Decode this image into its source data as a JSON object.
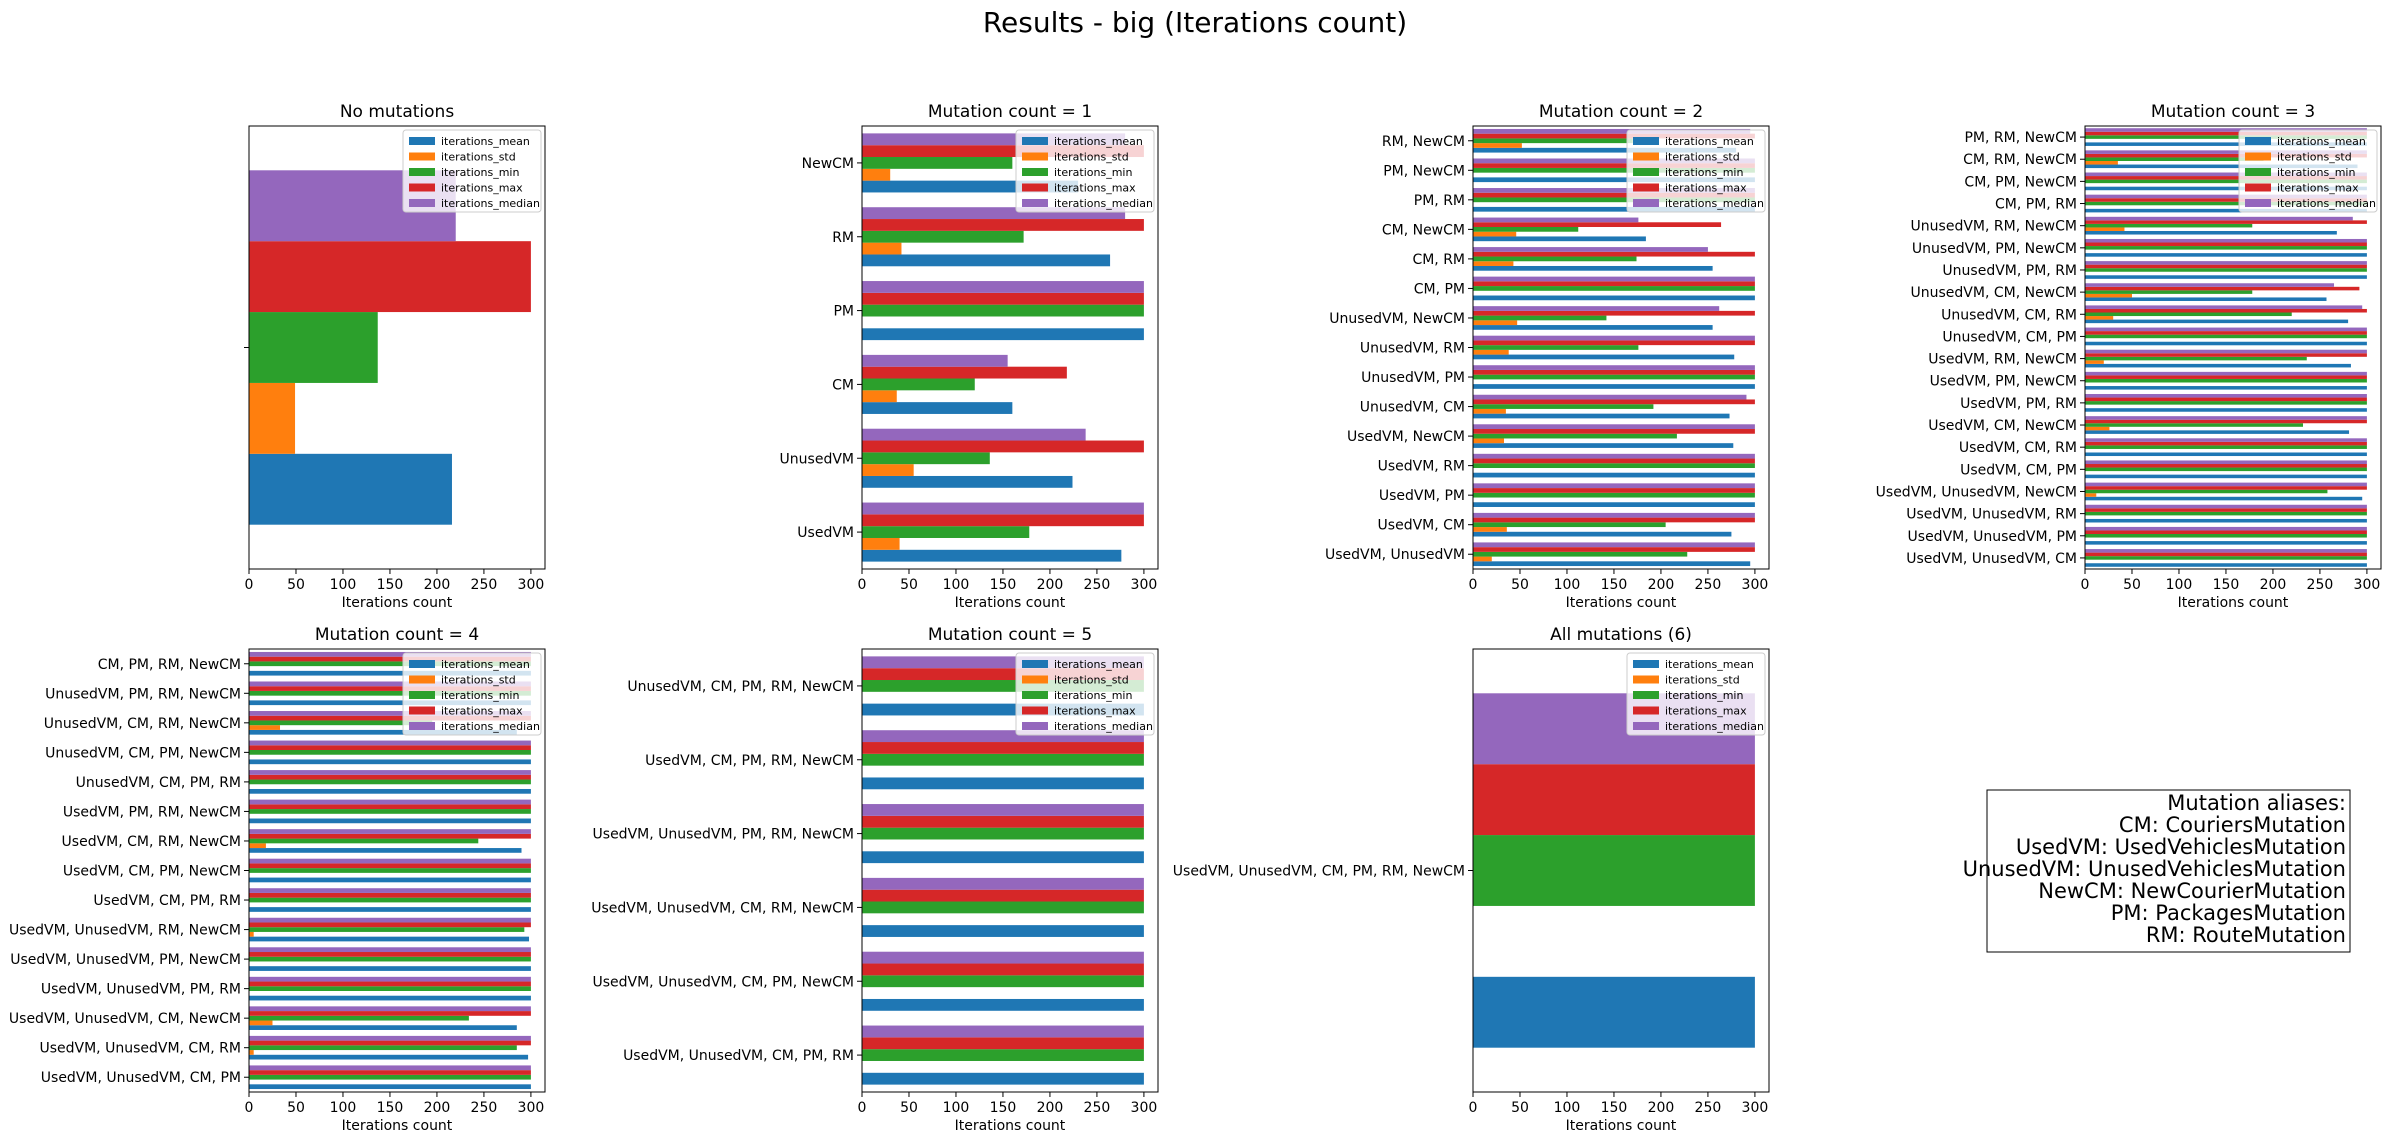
{
  "figure_title": "Results - big (Iterations count)",
  "colors": {
    "iterations_mean": "#1f77b4",
    "iterations_std": "#ff7f0e",
    "iterations_min": "#2ca02c",
    "iterations_max": "#d62728",
    "iterations_median": "#9467bd"
  },
  "chart_data": [
    {
      "type": "bar",
      "orientation": "horizontal",
      "title": "No mutations",
      "xlabel": "Iterations count",
      "xlim": [
        0,
        315
      ],
      "xticks": [
        0,
        50,
        100,
        150,
        200,
        250,
        300
      ],
      "legend": [
        "iterations_mean",
        "iterations_std",
        "iterations_min",
        "iterations_max",
        "iterations_median"
      ],
      "legend_position": "upper right",
      "categories": [
        ""
      ],
      "series": [
        {
          "name": "iterations_mean",
          "values": [
            216
          ]
        },
        {
          "name": "iterations_std",
          "values": [
            49
          ]
        },
        {
          "name": "iterations_min",
          "values": [
            137
          ]
        },
        {
          "name": "iterations_max",
          "values": [
            300
          ]
        },
        {
          "name": "iterations_median",
          "values": [
            220
          ]
        }
      ]
    },
    {
      "type": "bar",
      "orientation": "horizontal",
      "title": "Mutation count = 1",
      "xlabel": "Iterations count",
      "xlim": [
        0,
        315
      ],
      "xticks": [
        0,
        50,
        100,
        150,
        200,
        250,
        300
      ],
      "legend": [
        "iterations_mean",
        "iterations_std",
        "iterations_min",
        "iterations_max",
        "iterations_median"
      ],
      "legend_position": "upper right",
      "categories": [
        "UsedVM",
        "UnusedVM",
        "CM",
        "PM",
        "RM",
        "NewCM"
      ],
      "series": [
        {
          "name": "iterations_mean",
          "values": [
            276,
            224,
            160,
            300,
            264,
            230
          ]
        },
        {
          "name": "iterations_std",
          "values": [
            40,
            55,
            37,
            0,
            42,
            30
          ]
        },
        {
          "name": "iterations_min",
          "values": [
            178,
            136,
            120,
            300,
            172,
            160
          ]
        },
        {
          "name": "iterations_max",
          "values": [
            300,
            300,
            218,
            300,
            300,
            300
          ]
        },
        {
          "name": "iterations_median",
          "values": [
            300,
            238,
            155,
            300,
            280,
            280
          ]
        }
      ]
    },
    {
      "type": "bar",
      "orientation": "horizontal",
      "title": "Mutation count = 2",
      "xlabel": "Iterations count",
      "xlim": [
        0,
        315
      ],
      "xticks": [
        0,
        50,
        100,
        150,
        200,
        250,
        300
      ],
      "legend": [
        "iterations_mean",
        "iterations_std",
        "iterations_min",
        "iterations_max",
        "iterations_median"
      ],
      "legend_position": "upper right",
      "categories": [
        "UsedVM, UnusedVM",
        "UsedVM, CM",
        "UsedVM, PM",
        "UsedVM, RM",
        "UsedVM, NewCM",
        "UnusedVM, CM",
        "UnusedVM, PM",
        "UnusedVM, RM",
        "UnusedVM, NewCM",
        "CM, PM",
        "CM, RM",
        "CM, NewCM",
        "PM, RM",
        "PM, NewCM",
        "RM, NewCM"
      ],
      "series": [
        {
          "name": "iterations_mean",
          "values": [
            295,
            275,
            300,
            300,
            277,
            273,
            300,
            278,
            255,
            300,
            255,
            184,
            300,
            300,
            280
          ]
        },
        {
          "name": "iterations_std",
          "values": [
            20,
            36,
            0,
            0,
            33,
            35,
            0,
            38,
            47,
            0,
            43,
            46,
            0,
            0,
            52
          ]
        },
        {
          "name": "iterations_min",
          "values": [
            228,
            205,
            300,
            300,
            217,
            192,
            300,
            176,
            142,
            300,
            174,
            112,
            300,
            300,
            170
          ]
        },
        {
          "name": "iterations_max",
          "values": [
            300,
            300,
            300,
            300,
            300,
            300,
            300,
            300,
            300,
            300,
            300,
            264,
            300,
            300,
            300
          ]
        },
        {
          "name": "iterations_median",
          "values": [
            300,
            300,
            300,
            300,
            300,
            291,
            300,
            300,
            262,
            300,
            250,
            176,
            300,
            300,
            295
          ]
        }
      ]
    },
    {
      "type": "bar",
      "orientation": "horizontal",
      "title": "Mutation count = 3",
      "xlabel": "Iterations count",
      "xlim": [
        0,
        315
      ],
      "xticks": [
        0,
        50,
        100,
        150,
        200,
        250,
        300
      ],
      "legend": [
        "iterations_mean",
        "iterations_std",
        "iterations_min",
        "iterations_max",
        "iterations_median"
      ],
      "legend_position": "upper right",
      "categories": [
        "UsedVM, UnusedVM, CM",
        "UsedVM, UnusedVM, PM",
        "UsedVM, UnusedVM, RM",
        "UsedVM, UnusedVM, NewCM",
        "UsedVM, CM, PM",
        "UsedVM, CM, RM",
        "UsedVM, CM, NewCM",
        "UsedVM, PM, RM",
        "UsedVM, PM, NewCM",
        "UsedVM, RM, NewCM",
        "UnusedVM, CM, PM",
        "UnusedVM, CM, RM",
        "UnusedVM, CM, NewCM",
        "UnusedVM, PM, RM",
        "UnusedVM, PM, NewCM",
        "UnusedVM, RM, NewCM",
        "CM, PM, RM",
        "CM, PM, NewCM",
        "CM, RM, NewCM",
        "PM, RM, NewCM"
      ],
      "series": [
        {
          "name": "iterations_mean",
          "values": [
            300,
            300,
            300,
            295,
            300,
            300,
            281,
            300,
            300,
            283,
            300,
            280,
            257,
            300,
            300,
            268,
            300,
            300,
            290,
            300
          ]
        },
        {
          "name": "iterations_std",
          "values": [
            0,
            0,
            0,
            12,
            0,
            0,
            26,
            0,
            0,
            20,
            0,
            30,
            50,
            0,
            0,
            42,
            0,
            0,
            35,
            0
          ]
        },
        {
          "name": "iterations_min",
          "values": [
            300,
            300,
            300,
            258,
            300,
            300,
            232,
            300,
            300,
            236,
            300,
            220,
            178,
            300,
            300,
            178,
            300,
            300,
            190,
            300
          ]
        },
        {
          "name": "iterations_max",
          "values": [
            300,
            300,
            300,
            300,
            300,
            300,
            300,
            300,
            300,
            300,
            300,
            300,
            292,
            300,
            300,
            300,
            300,
            300,
            300,
            300
          ]
        },
        {
          "name": "iterations_median",
          "values": [
            300,
            300,
            300,
            300,
            300,
            300,
            300,
            300,
            300,
            300,
            300,
            295,
            265,
            300,
            300,
            285,
            300,
            300,
            300,
            300
          ]
        }
      ]
    },
    {
      "type": "bar",
      "orientation": "horizontal",
      "title": "Mutation count = 4",
      "xlabel": "Iterations count",
      "xlim": [
        0,
        315
      ],
      "xticks": [
        0,
        50,
        100,
        150,
        200,
        250,
        300
      ],
      "legend": [
        "iterations_mean",
        "iterations_std",
        "iterations_min",
        "iterations_max",
        "iterations_median"
      ],
      "legend_position": "upper right",
      "categories": [
        "UsedVM, UnusedVM, CM, PM",
        "UsedVM, UnusedVM, CM, RM",
        "UsedVM, UnusedVM, CM, NewCM",
        "UsedVM, UnusedVM, PM, RM",
        "UsedVM, UnusedVM, PM, NewCM",
        "UsedVM, UnusedVM, RM, NewCM",
        "UsedVM, CM, PM, RM",
        "UsedVM, CM, PM, NewCM",
        "UsedVM, CM, RM, NewCM",
        "UsedVM, PM, RM, NewCM",
        "UnusedVM, CM, PM, RM",
        "UnusedVM, CM, PM, NewCM",
        "UnusedVM, CM, RM, NewCM",
        "UnusedVM, PM, RM, NewCM",
        "CM, PM, RM, NewCM"
      ],
      "series": [
        {
          "name": "iterations_mean",
          "values": [
            300,
            297,
            285,
            300,
            300,
            298,
            300,
            300,
            290,
            300,
            300,
            300,
            285,
            300,
            300
          ]
        },
        {
          "name": "iterations_std",
          "values": [
            0,
            5,
            25,
            0,
            0,
            5,
            0,
            0,
            18,
            0,
            0,
            0,
            33,
            0,
            0
          ]
        },
        {
          "name": "iterations_min",
          "values": [
            300,
            285,
            234,
            300,
            300,
            293,
            300,
            300,
            244,
            300,
            300,
            300,
            195,
            300,
            300
          ]
        },
        {
          "name": "iterations_max",
          "values": [
            300,
            300,
            300,
            300,
            300,
            300,
            300,
            300,
            300,
            300,
            300,
            300,
            300,
            300,
            300
          ]
        },
        {
          "name": "iterations_median",
          "values": [
            300,
            300,
            300,
            300,
            300,
            300,
            300,
            300,
            300,
            300,
            300,
            300,
            300,
            300,
            300
          ]
        }
      ]
    },
    {
      "type": "bar",
      "orientation": "horizontal",
      "title": "Mutation count = 5",
      "xlabel": "Iterations count",
      "xlim": [
        0,
        315
      ],
      "xticks": [
        0,
        50,
        100,
        150,
        200,
        250,
        300
      ],
      "legend": [
        "iterations_mean",
        "iterations_std",
        "iterations_min",
        "iterations_max",
        "iterations_median"
      ],
      "legend_position": "upper right",
      "categories": [
        "UsedVM, UnusedVM, CM, PM, RM",
        "UsedVM, UnusedVM, CM, PM, NewCM",
        "UsedVM, UnusedVM, CM, RM, NewCM",
        "UsedVM, UnusedVM, PM, RM, NewCM",
        "UsedVM, CM, PM, RM, NewCM",
        "UnusedVM, CM, PM, RM, NewCM"
      ],
      "series": [
        {
          "name": "iterations_mean",
          "values": [
            300,
            300,
            300,
            300,
            300,
            300
          ]
        },
        {
          "name": "iterations_std",
          "values": [
            0,
            0,
            0,
            0,
            0,
            0
          ]
        },
        {
          "name": "iterations_min",
          "values": [
            300,
            300,
            300,
            300,
            300,
            300
          ]
        },
        {
          "name": "iterations_max",
          "values": [
            300,
            300,
            300,
            300,
            300,
            300
          ]
        },
        {
          "name": "iterations_median",
          "values": [
            300,
            300,
            300,
            300,
            300,
            300
          ]
        }
      ]
    },
    {
      "type": "bar",
      "orientation": "horizontal",
      "title": "All mutations (6)",
      "xlabel": "Iterations count",
      "xlim": [
        0,
        315
      ],
      "xticks": [
        0,
        50,
        100,
        150,
        200,
        250,
        300
      ],
      "legend": [
        "iterations_mean",
        "iterations_std",
        "iterations_min",
        "iterations_max",
        "iterations_median"
      ],
      "legend_position": "upper right",
      "categories": [
        "UsedVM, UnusedVM, CM, PM, RM, NewCM"
      ],
      "series": [
        {
          "name": "iterations_mean",
          "values": [
            300
          ]
        },
        {
          "name": "iterations_std",
          "values": [
            0
          ]
        },
        {
          "name": "iterations_min",
          "values": [
            300
          ]
        },
        {
          "name": "iterations_max",
          "values": [
            300
          ]
        },
        {
          "name": "iterations_median",
          "values": [
            300
          ]
        }
      ]
    }
  ],
  "aliases": {
    "title": "Mutation aliases:",
    "lines": [
      "CM: CouriersMutation",
      "UsedVM: UsedVehiclesMutation",
      "UnusedVM: UnusedVehiclesMutation",
      "NewCM: NewCourierMutation",
      "PM: PackagesMutation",
      "RM: RouteMutation"
    ]
  }
}
